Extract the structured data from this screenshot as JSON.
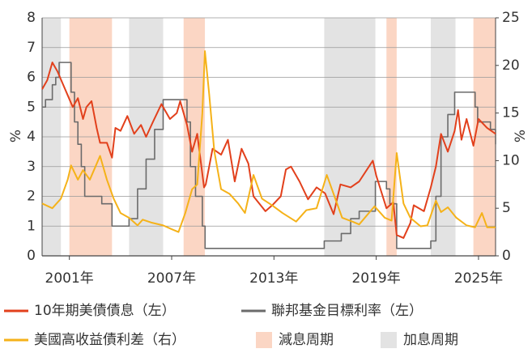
{
  "chart_data": {
    "type": "line",
    "ylabel": "%",
    "y2label": "%",
    "xlim": [
      1999.4,
      2026.0
    ],
    "xticks": [
      {
        "value": 2001,
        "label": "2001年"
      },
      {
        "value": 2007,
        "label": "2007年"
      },
      {
        "value": 2013,
        "label": "2013年"
      },
      {
        "value": 2019,
        "label": "2019年"
      },
      {
        "value": 2025,
        "label": "2025年"
      }
    ],
    "ylim": [
      0,
      8
    ],
    "yticks": [
      0,
      1,
      2,
      3,
      4,
      5,
      6,
      7,
      8
    ],
    "y2lim": [
      0,
      25
    ],
    "y2ticks": [
      0,
      5,
      10,
      15,
      20,
      25
    ],
    "grid": true,
    "shaded": [
      {
        "name": "減息周期",
        "color": "#fbd6c4",
        "ranges": [
          [
            2001.0,
            2003.5
          ],
          [
            2007.7,
            2008.95
          ],
          [
            2019.6,
            2020.2
          ],
          [
            2024.7,
            2026.0
          ]
        ]
      },
      {
        "name": "加息周期",
        "color": "#e3e3e3",
        "ranges": [
          [
            1999.4,
            2000.5
          ],
          [
            2004.5,
            2006.5
          ],
          [
            2015.95,
            2018.95
          ],
          [
            2022.2,
            2023.65
          ]
        ]
      }
    ],
    "series": [
      {
        "name": "10年期美債債息（左）",
        "color": "#e2401c",
        "x": [
          1999.4,
          1999.7,
          2000.0,
          2000.3,
          2000.6,
          2000.9,
          2001.2,
          2001.5,
          2001.8,
          2002.0,
          2002.3,
          2002.6,
          2002.8,
          2003.2,
          2003.5,
          2003.7,
          2004.0,
          2004.4,
          2004.8,
          2005.2,
          2005.5,
          2005.9,
          2006.4,
          2006.9,
          2007.3,
          2007.5,
          2007.9,
          2008.2,
          2008.5,
          2008.9,
          2009.0,
          2009.4,
          2009.9,
          2010.3,
          2010.7,
          2011.1,
          2011.5,
          2011.8,
          2012.5,
          2012.9,
          2013.4,
          2013.7,
          2014.0,
          2014.5,
          2015.0,
          2015.5,
          2016.0,
          2016.5,
          2016.9,
          2017.5,
          2018.0,
          2018.8,
          2019.0,
          2019.6,
          2020.0,
          2020.2,
          2020.6,
          2021.0,
          2021.2,
          2021.8,
          2022.2,
          2022.5,
          2022.8,
          2023.2,
          2023.6,
          2023.8,
          2024.0,
          2024.3,
          2024.7,
          2025.0,
          2025.5,
          2026.0
        ],
        "values": [
          5.6,
          5.9,
          6.5,
          6.2,
          5.8,
          5.4,
          5.0,
          5.3,
          4.6,
          5.0,
          5.2,
          4.3,
          3.8,
          3.8,
          3.3,
          4.3,
          4.2,
          4.7,
          4.1,
          4.4,
          4.0,
          4.5,
          5.1,
          4.6,
          4.8,
          5.2,
          4.4,
          3.5,
          4.1,
          2.3,
          2.4,
          3.6,
          3.4,
          3.9,
          2.5,
          3.6,
          3.1,
          2.0,
          1.5,
          1.7,
          2.0,
          2.9,
          3.0,
          2.5,
          1.9,
          2.3,
          2.1,
          1.4,
          2.4,
          2.3,
          2.5,
          3.2,
          2.7,
          1.6,
          1.8,
          0.7,
          0.6,
          1.1,
          1.7,
          1.5,
          2.3,
          3.0,
          4.1,
          3.5,
          4.2,
          4.9,
          3.9,
          4.6,
          3.7,
          4.6,
          4.3,
          4.1
        ]
      },
      {
        "name": "聯邦基金目標利率（左）",
        "color": "#6b6b6b",
        "x": [
          1999.4,
          1999.6,
          2000.0,
          2000.2,
          2000.4,
          2001.1,
          2001.3,
          2001.5,
          2001.7,
          2001.9,
          2002.9,
          2003.5,
          2004.5,
          2005.0,
          2005.5,
          2006.0,
          2006.5,
          2007.9,
          2008.1,
          2008.4,
          2008.8,
          2008.96,
          2015.95,
          2016.95,
          2017.5,
          2018.0,
          2018.95,
          2019.6,
          2019.8,
          2020.2,
          2022.2,
          2022.5,
          2022.8,
          2023.2,
          2023.6,
          2024.8,
          2024.95,
          2025.7,
          2026.0
        ],
        "values": [
          5.0,
          5.25,
          5.75,
          6.0,
          6.5,
          5.5,
          4.5,
          3.75,
          3.0,
          2.0,
          1.75,
          1.0,
          1.25,
          2.25,
          3.25,
          4.25,
          5.25,
          4.5,
          3.0,
          2.0,
          1.0,
          0.25,
          0.5,
          0.75,
          1.25,
          1.5,
          2.5,
          2.25,
          1.75,
          0.25,
          0.5,
          2.0,
          4.0,
          4.75,
          5.5,
          5.0,
          4.5,
          4.25,
          3.75
        ]
      },
      {
        "name": "美國高收益債利差（右）",
        "color": "#f5b219",
        "axis": "y2",
        "x": [
          1999.4,
          2000.0,
          2000.5,
          2000.9,
          2001.1,
          2001.5,
          2001.8,
          2002.2,
          2002.8,
          2003.2,
          2003.6,
          2004.0,
          2004.5,
          2005.0,
          2005.3,
          2005.8,
          2006.5,
          2007.0,
          2007.4,
          2007.8,
          2008.2,
          2008.5,
          2008.8,
          2008.95,
          2009.2,
          2009.5,
          2009.9,
          2010.4,
          2010.9,
          2011.3,
          2011.8,
          2012.3,
          2012.9,
          2013.5,
          2014.3,
          2014.9,
          2015.5,
          2016.1,
          2016.6,
          2017.0,
          2017.6,
          2018.0,
          2018.9,
          2019.5,
          2019.9,
          2020.2,
          2020.6,
          2021.0,
          2021.6,
          2022.0,
          2022.5,
          2022.8,
          2023.2,
          2023.7,
          2024.3,
          2024.8,
          2025.2,
          2025.5,
          2026.0
        ],
        "values": [
          5.5,
          5.0,
          6.0,
          8.0,
          9.5,
          8.0,
          9.0,
          8.0,
          10.5,
          8.0,
          6.0,
          4.5,
          4.0,
          3.2,
          3.8,
          3.5,
          3.2,
          2.8,
          2.5,
          4.5,
          7.0,
          7.5,
          15.0,
          21.5,
          17.0,
          11.0,
          7.0,
          6.5,
          5.5,
          4.5,
          8.5,
          6.0,
          5.3,
          4.5,
          3.6,
          4.8,
          5.0,
          8.5,
          6.0,
          4.0,
          3.6,
          3.3,
          5.2,
          4.0,
          3.7,
          10.8,
          5.5,
          4.0,
          3.1,
          3.2,
          5.8,
          4.6,
          5.1,
          4.0,
          3.2,
          3.0,
          4.5,
          3.0,
          3.0
        ]
      }
    ]
  }
}
